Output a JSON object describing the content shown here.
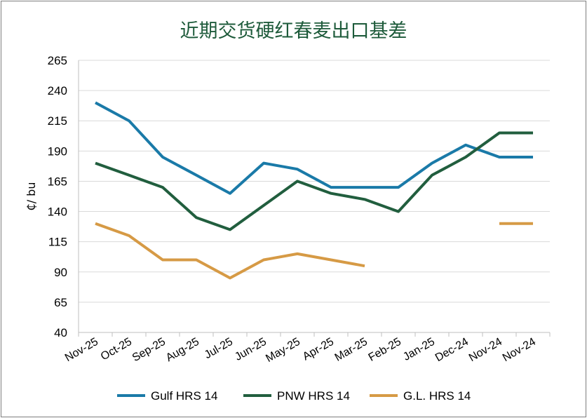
{
  "chart_data": {
    "type": "line",
    "title": "近期交货硬红春麦出口基差",
    "xlabel": "",
    "ylabel": "₵/ bu",
    "ylim": [
      40,
      265
    ],
    "yticks": [
      40,
      65,
      90,
      115,
      140,
      165,
      190,
      215,
      240,
      265
    ],
    "categories": [
      "Nov-25",
      "Oct-25",
      "Sep-25",
      "Aug-25",
      "Jul-25",
      "Jun-25",
      "May-25",
      "Apr-25",
      "Mar-25",
      "Feb-25",
      "Jan-25",
      "Dec-24",
      "Nov-24",
      "Nov-24"
    ],
    "grid": true,
    "legend_position": "bottom",
    "series": [
      {
        "name": "Gulf HRS 14",
        "color": "#1a7aa8",
        "values": [
          230,
          215,
          185,
          170,
          155,
          180,
          175,
          160,
          160,
          160,
          180,
          195,
          185,
          185
        ]
      },
      {
        "name": "PNW HRS 14",
        "color": "#215e3e",
        "values": [
          180,
          170,
          160,
          135,
          125,
          145,
          165,
          155,
          150,
          140,
          170,
          185,
          205,
          205
        ]
      },
      {
        "name": "G.L. HRS 14",
        "color": "#d69a45",
        "values": [
          130,
          120,
          100,
          100,
          85,
          100,
          105,
          100,
          95,
          null,
          null,
          null,
          130,
          130
        ]
      }
    ]
  }
}
